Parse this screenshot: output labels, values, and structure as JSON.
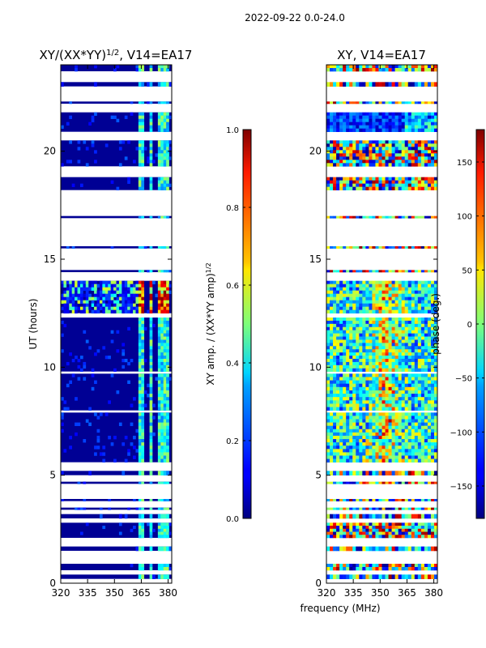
{
  "suptitle": "2022-09-22 0.0-24.0",
  "chart_data": [
    {
      "type": "heatmap",
      "title": "XY/(XX*YY)$^{1/2}$, V14=EA17",
      "title_main": "XY/(XX*YY)",
      "title_sup": "1/2",
      "title_tail": ", V14=EA17",
      "xlabel": "frequency (MHz)",
      "ylabel": "UT (hours)",
      "xlim": [
        320,
        382
      ],
      "ylim": [
        0,
        24
      ],
      "xticks": [
        320,
        335,
        350,
        365,
        380
      ],
      "yticks": [
        0,
        5,
        10,
        15,
        20
      ],
      "colorbar": {
        "label": "XY amp. / (XX*YY amp)$^{1/2}$",
        "label_main": "XY amp. / (XX*YY amp)",
        "label_sup": "1/2",
        "range": [
          0.0,
          1.0
        ],
        "ticks": [
          "0.0",
          "0.2",
          "0.4",
          "0.6",
          "0.8",
          "1.0"
        ],
        "tick_values": [
          0.0,
          0.2,
          0.4,
          0.6,
          0.8,
          1.0
        ]
      },
      "data_bands_hours": [
        [
          0.2,
          0.4
        ],
        [
          0.6,
          0.9
        ],
        [
          1.5,
          1.7
        ],
        [
          2.1,
          2.8
        ],
        [
          3.0,
          3.2
        ],
        [
          3.4,
          3.5
        ],
        [
          3.8,
          3.9
        ],
        [
          4.6,
          4.7
        ],
        [
          5.0,
          5.2
        ],
        [
          5.6,
          7.9
        ],
        [
          8.0,
          9.7
        ],
        [
          9.8,
          12.3
        ],
        [
          12.5,
          14.0
        ],
        [
          14.4,
          14.5
        ],
        [
          15.5,
          15.6
        ],
        [
          16.9,
          17.0
        ],
        [
          18.2,
          18.8
        ],
        [
          19.3,
          20.5
        ],
        [
          20.9,
          21.8
        ],
        [
          22.2,
          22.3
        ],
        [
          23.0,
          23.2
        ],
        [
          23.7,
          24.0
        ]
      ],
      "rfi_columns_mhz": [
        [
          363,
          366
        ],
        [
          369,
          371
        ],
        [
          373,
          376
        ],
        [
          377,
          379
        ]
      ],
      "bright_band_hours": [
        12.5,
        14.0
      ],
      "colormap": "jet",
      "background_value": 0.0
    },
    {
      "type": "heatmap",
      "title": "XY, V14=EA17",
      "xlim": [
        320,
        382
      ],
      "ylim": [
        0,
        24
      ],
      "xticks": [
        320,
        335,
        350,
        365,
        380
      ],
      "yticks": [
        0,
        5,
        10,
        15,
        20
      ],
      "colorbar": {
        "label": "phase (deg.)",
        "range": [
          -180,
          180
        ],
        "ticks": [
          "−150",
          "−100",
          "−50",
          "0",
          "50",
          "100",
          "150"
        ],
        "tick_values": [
          -150,
          -100,
          -50,
          0,
          50,
          100,
          150
        ]
      },
      "data_bands_hours": [
        [
          0.2,
          0.4
        ],
        [
          0.6,
          0.9
        ],
        [
          1.5,
          1.7
        ],
        [
          2.1,
          2.8
        ],
        [
          3.0,
          3.2
        ],
        [
          3.4,
          3.5
        ],
        [
          3.8,
          3.9
        ],
        [
          4.6,
          4.7
        ],
        [
          5.0,
          5.2
        ],
        [
          5.6,
          7.9
        ],
        [
          8.0,
          9.7
        ],
        [
          9.8,
          12.3
        ],
        [
          12.5,
          14.0
        ],
        [
          14.4,
          14.5
        ],
        [
          15.5,
          15.6
        ],
        [
          16.9,
          17.0
        ],
        [
          18.2,
          18.8
        ],
        [
          19.3,
          20.5
        ],
        [
          20.9,
          21.8
        ],
        [
          22.2,
          22.3
        ],
        [
          23.0,
          23.2
        ],
        [
          23.7,
          24.0
        ]
      ],
      "colormap": "jet"
    }
  ]
}
